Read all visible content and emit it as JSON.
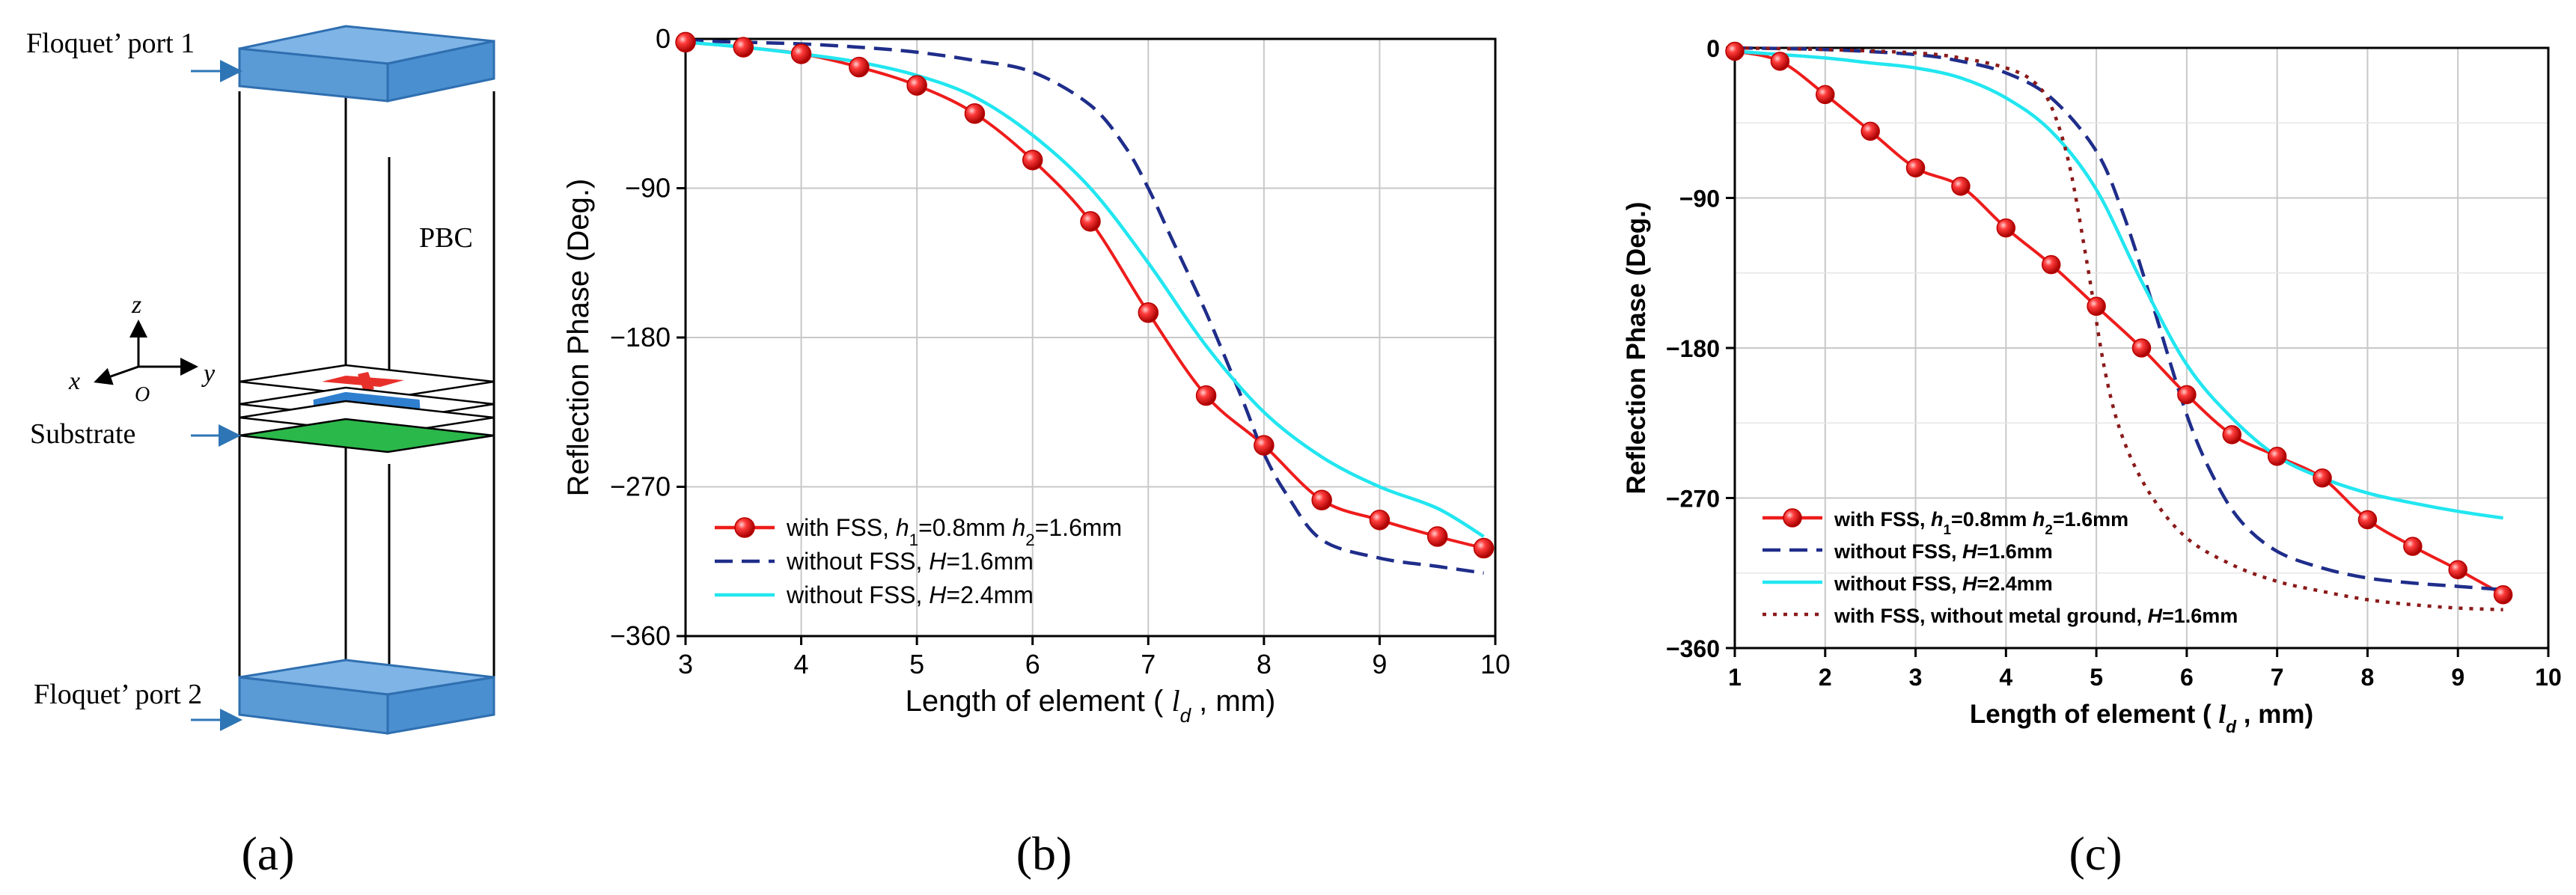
{
  "panel_a": {
    "label": "(a)",
    "port1": "Floquet’ port 1",
    "port2": "Floquet’ port 2",
    "pbc": "PBC",
    "substrate": "Substrate",
    "axis_x": "x",
    "axis_y": "y",
    "axis_z": "z",
    "axis_o": "O",
    "colors": {
      "port": "#5b9bd5",
      "port_dark": "#2f6fb0",
      "substrate": "#2bb84a",
      "red": "#e8302a",
      "blue": "#2f7fd0",
      "arrow": "#2e75b6"
    }
  },
  "panel_b_label": "(b)",
  "panel_c_label": "(c)",
  "chart_data": [
    {
      "type": "line",
      "xlabel_pre": "Length of element (",
      "xlabel_var": "l",
      "xlabel_sub": "d",
      "xlabel_post": ", mm)",
      "ylabel": "Reflection Phase (Deg.)",
      "xlim": [
        3,
        10
      ],
      "ylim": [
        -360,
        0
      ],
      "xticks": [
        "3",
        "4",
        "5",
        "6",
        "7",
        "8",
        "9",
        "10"
      ],
      "yticks": [
        "0",
        "−90",
        "−180",
        "−270",
        "−360"
      ],
      "grid": true,
      "legend_position": "bottom-left",
      "series": [
        {
          "name": "with FSS, h1=0.8mm h2=1.6mm",
          "legend_parts": [
            [
              "with FSS, ",
              ""
            ],
            [
              "h",
              "i"
            ],
            [
              "1",
              "sub"
            ],
            [
              "=0.8mm ",
              ""
            ],
            [
              "h",
              "i"
            ],
            [
              "2",
              "sub"
            ],
            [
              "=1.6mm",
              ""
            ]
          ],
          "color": "#ee1c1c",
          "style": "solid",
          "marker": "circle",
          "x": [
            3,
            3.5,
            4,
            4.5,
            5,
            5.5,
            6,
            6.5,
            7,
            7.5,
            8,
            8.5,
            9,
            9.5,
            9.9
          ],
          "y": [
            -2,
            -5,
            -9,
            -17,
            -28,
            -45,
            -73,
            -110,
            -165,
            -215,
            -245,
            -278,
            -290,
            -300,
            -307
          ]
        },
        {
          "name": "without FSS, H=1.6mm",
          "legend_parts": [
            [
              "without FSS, ",
              ""
            ],
            [
              "H",
              "i"
            ],
            [
              "=1.6mm",
              ""
            ]
          ],
          "color": "#1f2d8a",
          "style": "dashed",
          "x": [
            3,
            3.5,
            4,
            4.5,
            5,
            5.5,
            6,
            6.5,
            6.8,
            7,
            7.2,
            7.5,
            7.8,
            8,
            8.2,
            8.5,
            9,
            9.5,
            9.9
          ],
          "y": [
            -1,
            -2,
            -3,
            -5,
            -8,
            -13,
            -20,
            -40,
            -65,
            -90,
            -120,
            -165,
            -215,
            -250,
            -275,
            -302,
            -313,
            -318,
            -322
          ]
        },
        {
          "name": "without FSS, H=2.4mm",
          "legend_parts": [
            [
              "without FSS, ",
              ""
            ],
            [
              "H",
              "i"
            ],
            [
              "=2.4mm",
              ""
            ]
          ],
          "color": "#22e6f0",
          "style": "solid",
          "x": [
            3,
            3.5,
            4,
            4.5,
            5,
            5.5,
            6,
            6.5,
            7,
            7.5,
            8,
            8.5,
            9,
            9.5,
            9.9
          ],
          "y": [
            -2,
            -5,
            -9,
            -14,
            -22,
            -35,
            -58,
            -90,
            -135,
            -185,
            -225,
            -252,
            -270,
            -283,
            -300
          ]
        }
      ]
    },
    {
      "type": "line",
      "xlabel_pre": "Length of element (",
      "xlabel_var": "l",
      "xlabel_sub": "d",
      "xlabel_post": ", mm)",
      "ylabel": "Reflection Phase (Deg.)",
      "xlim": [
        1,
        10
      ],
      "ylim": [
        -360,
        0
      ],
      "xticks": [
        "1",
        "2",
        "3",
        "4",
        "5",
        "6",
        "7",
        "8",
        "9",
        "10"
      ],
      "yticks": [
        "0",
        "−90",
        "−180",
        "−270",
        "−360"
      ],
      "grid": true,
      "legend_position": "bottom-left",
      "series": [
        {
          "name": "with FSS, h1=0.8mm h2=1.6mm",
          "legend_parts": [
            [
              "with FSS, ",
              ""
            ],
            [
              "h",
              "i"
            ],
            [
              "1",
              "sub"
            ],
            [
              "=0.8mm ",
              ""
            ],
            [
              "h",
              "i"
            ],
            [
              "2",
              "sub"
            ],
            [
              "=1.6mm",
              ""
            ]
          ],
          "color": "#ee1c1c",
          "style": "solid",
          "marker": "circle",
          "x": [
            1,
            1.5,
            2,
            2.5,
            3,
            3.5,
            4,
            4.5,
            5,
            5.5,
            6,
            6.5,
            7,
            7.5,
            8,
            8.5,
            9,
            9.5
          ],
          "y": [
            -2,
            -8,
            -28,
            -50,
            -72,
            -83,
            -108,
            -130,
            -155,
            -180,
            -208,
            -232,
            -245,
            -258,
            -283,
            -299,
            -313,
            -328
          ]
        },
        {
          "name": "without FSS, H=1.6mm",
          "legend_parts": [
            [
              "without FSS, ",
              ""
            ],
            [
              "H",
              "i"
            ],
            [
              "=1.6mm",
              ""
            ]
          ],
          "color": "#1f2d8a",
          "style": "dashed",
          "x": [
            1,
            2,
            3,
            3.5,
            4,
            4.5,
            5,
            5.3,
            5.6,
            6,
            6.3,
            6.6,
            7,
            7.5,
            8,
            8.5,
            9,
            9.5
          ],
          "y": [
            0,
            -1,
            -4,
            -8,
            -15,
            -30,
            -62,
            -100,
            -150,
            -220,
            -258,
            -284,
            -302,
            -312,
            -318,
            -321,
            -323,
            -325
          ]
        },
        {
          "name": "without FSS, H=2.4mm",
          "legend_parts": [
            [
              "without FSS, ",
              ""
            ],
            [
              "H",
              "i"
            ],
            [
              "=2.4mm",
              ""
            ]
          ],
          "color": "#22e6f0",
          "style": "solid",
          "x": [
            1,
            1.5,
            2,
            2.5,
            3,
            3.5,
            4,
            4.5,
            5,
            5.5,
            6,
            6.5,
            7,
            7.5,
            8,
            8.5,
            9,
            9.5
          ],
          "y": [
            -2,
            -4,
            -6,
            -9,
            -12,
            -18,
            -30,
            -50,
            -85,
            -140,
            -190,
            -222,
            -245,
            -258,
            -267,
            -273,
            -278,
            -282
          ]
        },
        {
          "name": "with FSS, without metal ground, H=1.6mm",
          "legend_parts": [
            [
              "with FSS, without metal ground,  ",
              ""
            ],
            [
              "H",
              "i"
            ],
            [
              "=1.6mm",
              ""
            ]
          ],
          "color": "#8b1a1a",
          "style": "dotted",
          "x": [
            1,
            2,
            3,
            3.5,
            4,
            4.3,
            4.5,
            4.7,
            4.9,
            5.1,
            5.3,
            5.6,
            6,
            6.5,
            7,
            7.5,
            8,
            8.5,
            9,
            9.5
          ],
          "y": [
            0,
            -1,
            -3,
            -6,
            -12,
            -20,
            -35,
            -70,
            -130,
            -195,
            -235,
            -268,
            -294,
            -310,
            -320,
            -326,
            -331,
            -334,
            -336,
            -337
          ]
        }
      ]
    }
  ]
}
